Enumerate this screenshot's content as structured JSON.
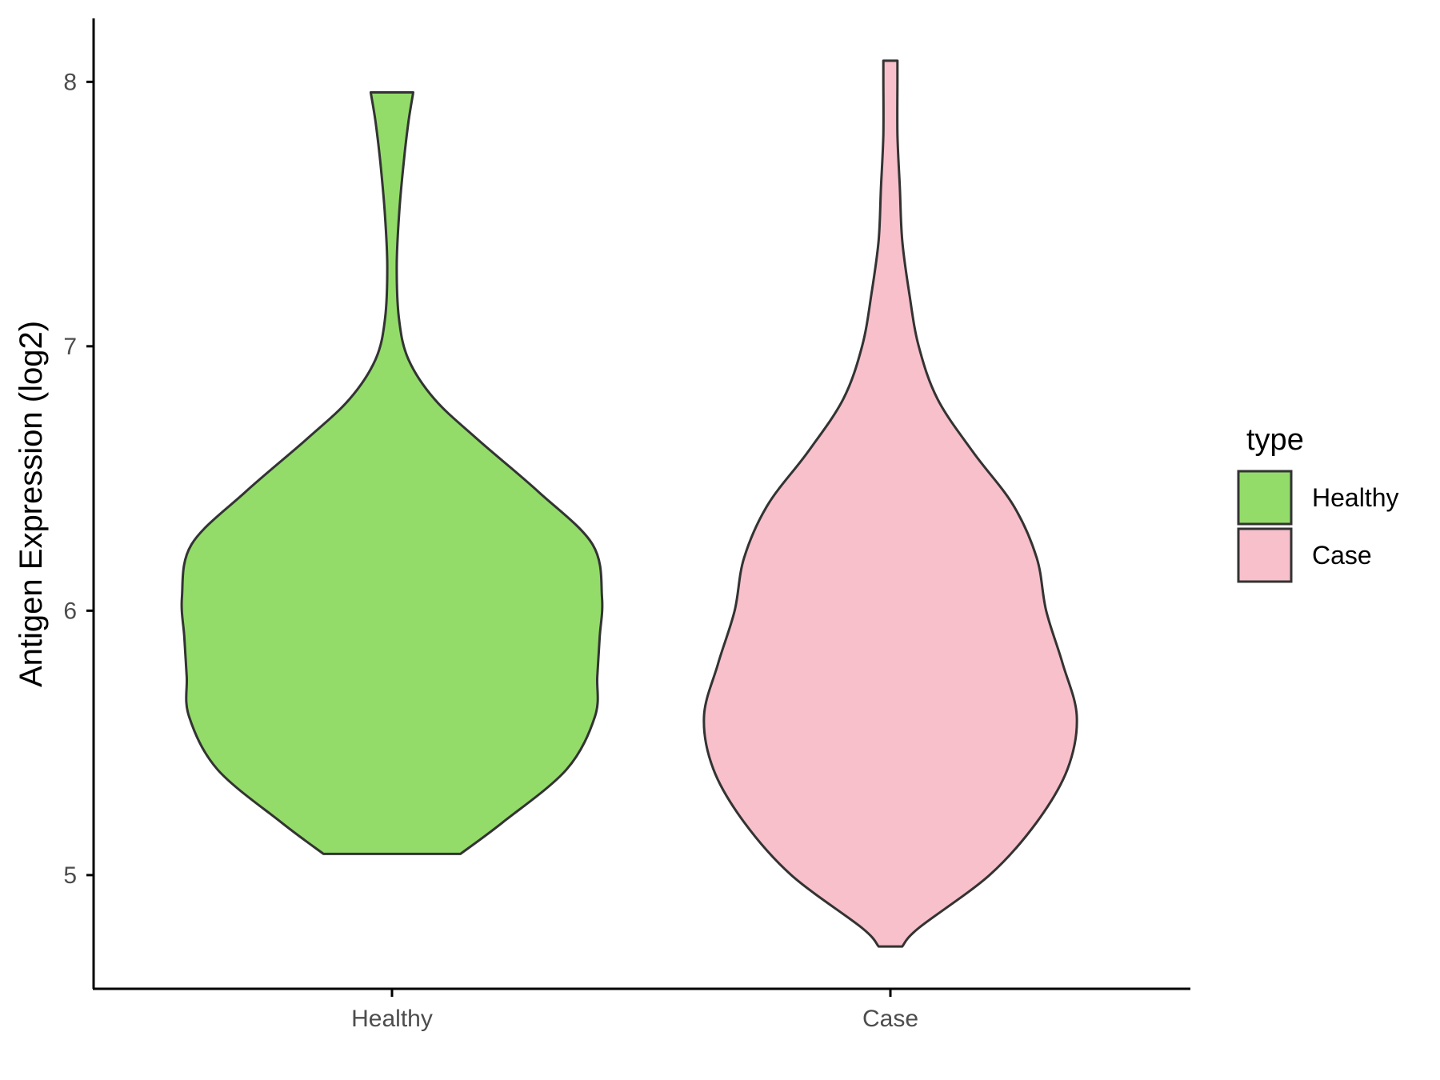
{
  "chart_data": {
    "type": "violin",
    "title": "",
    "xlabel": "",
    "ylabel": "Antigen Expression (log2)",
    "ylim": [
      4.57,
      8.24
    ],
    "yticks": [
      5,
      6,
      7,
      8
    ],
    "grid": false,
    "legend": {
      "title": "type",
      "placement": "right",
      "entries": [
        "Healthy",
        "Case"
      ]
    },
    "categories": [
      "Healthy",
      "Case"
    ],
    "series": [
      {
        "name": "Healthy",
        "color": "#93DC6A",
        "min": 5.08,
        "max": 7.96,
        "profile": [
          [
            5.08,
            0.29
          ],
          [
            5.2,
            0.47
          ],
          [
            5.4,
            0.74
          ],
          [
            5.6,
            0.86
          ],
          [
            5.75,
            0.87
          ],
          [
            5.9,
            0.88
          ],
          [
            6.05,
            0.89
          ],
          [
            6.25,
            0.85
          ],
          [
            6.45,
            0.62
          ],
          [
            6.65,
            0.36
          ],
          [
            6.8,
            0.18
          ],
          [
            6.95,
            0.07
          ],
          [
            7.1,
            0.03
          ],
          [
            7.3,
            0.02
          ],
          [
            7.5,
            0.03
          ],
          [
            7.7,
            0.05
          ],
          [
            7.85,
            0.07
          ],
          [
            7.96,
            0.09
          ]
        ]
      },
      {
        "name": "Case",
        "color": "#F7C0CB",
        "min": 4.73,
        "max": 8.08,
        "profile": [
          [
            4.73,
            0.05
          ],
          [
            4.8,
            0.12
          ],
          [
            5.0,
            0.42
          ],
          [
            5.2,
            0.62
          ],
          [
            5.4,
            0.75
          ],
          [
            5.6,
            0.79
          ],
          [
            5.8,
            0.73
          ],
          [
            6.0,
            0.66
          ],
          [
            6.2,
            0.62
          ],
          [
            6.4,
            0.52
          ],
          [
            6.6,
            0.35
          ],
          [
            6.8,
            0.2
          ],
          [
            7.0,
            0.12
          ],
          [
            7.2,
            0.08
          ],
          [
            7.4,
            0.05
          ],
          [
            7.6,
            0.04
          ],
          [
            7.8,
            0.03
          ],
          [
            8.0,
            0.03
          ],
          [
            8.08,
            0.03
          ]
        ]
      }
    ]
  }
}
